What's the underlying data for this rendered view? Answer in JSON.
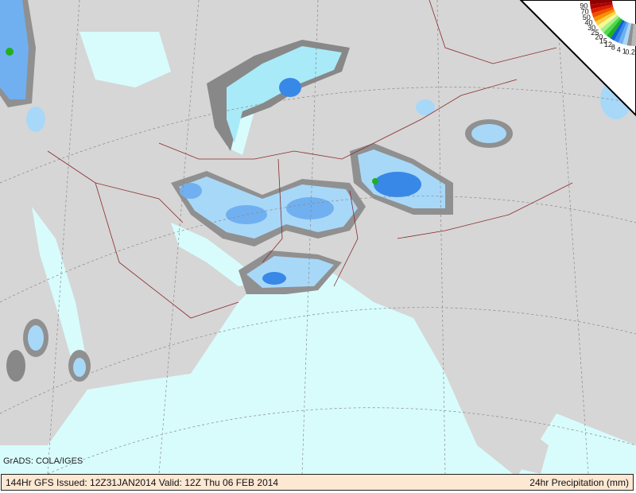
{
  "credit": "GrADS: COLA/IGES",
  "footer": {
    "left": "144Hr GFS Issued: 12Z31JAN2014 Valid: 12Z Thu 06 FEB 2014",
    "right": "24hr Precipitation (mm)"
  },
  "legend": {
    "labels": [
      "90",
      "70",
      "50",
      "40",
      "30",
      "25",
      "20",
      "15",
      "12",
      "8",
      "4",
      "1",
      "0.2"
    ],
    "colors": [
      "#8b0000",
      "#b00000",
      "#d82000",
      "#f05000",
      "#f89000",
      "#f8d040",
      "#f8f898",
      "#a8f088",
      "#50d850",
      "#20b020",
      "#1060d0",
      "#3888e8",
      "#70b0f0",
      "#a8d8f8",
      "#909090",
      "#b8b8b8"
    ]
  },
  "colors": {
    "ocean": "#d8fcfc",
    "land": "#d8d8d8",
    "border": "#8b2a2a",
    "grid": "#888888"
  }
}
